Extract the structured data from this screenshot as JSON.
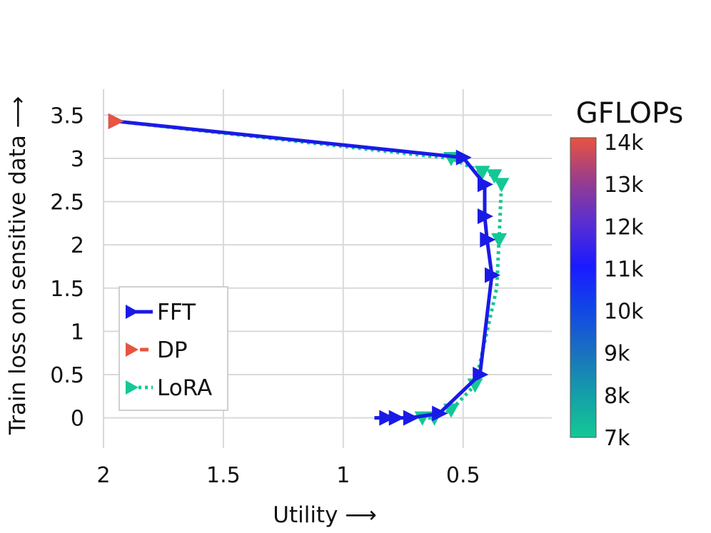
{
  "chart_data": {
    "type": "line",
    "xlabel": "Utility ⟶",
    "ylabel": "Train loss on sensitive data ⟶",
    "x_axis_reversed": true,
    "xlim": [
      2.0,
      0.13
    ],
    "ylim": [
      -0.35,
      3.8
    ],
    "xticks": [
      {
        "value": 2,
        "label": "2"
      },
      {
        "value": 1.5,
        "label": "1.5"
      },
      {
        "value": 1,
        "label": "1"
      },
      {
        "value": 0.5,
        "label": "0.5"
      }
    ],
    "yticks": [
      {
        "value": 3.5,
        "label": "3.5"
      },
      {
        "value": 3,
        "label": "3"
      },
      {
        "value": 2.5,
        "label": "2.5"
      },
      {
        "value": 2,
        "label": "2"
      },
      {
        "value": 1.5,
        "label": "1.5"
      },
      {
        "value": 1,
        "label": "1"
      },
      {
        "value": 0.5,
        "label": "0.5"
      },
      {
        "value": 0,
        "label": "0"
      }
    ],
    "grid": true,
    "legend_position": "lower-left",
    "series": [
      {
        "name": "FFT",
        "color": "#1a1ae6",
        "line_style": "solid",
        "marker": "triangle-right",
        "points": [
          [
            1.95,
            3.43
          ],
          [
            0.5,
            3.01
          ],
          [
            0.41,
            2.7
          ],
          [
            0.41,
            2.33
          ],
          [
            0.4,
            2.06
          ],
          [
            0.38,
            1.65
          ],
          [
            0.43,
            0.5
          ],
          [
            0.6,
            0.05
          ],
          [
            0.72,
            0.0
          ],
          [
            0.78,
            0.0
          ],
          [
            0.82,
            0.0
          ],
          [
            0.87,
            0.0
          ]
        ],
        "marker_indices": [
          0,
          1,
          2,
          3,
          4,
          5,
          6,
          7,
          8,
          9,
          10
        ]
      },
      {
        "name": "DP",
        "color": "#e8543f",
        "line_style": "dashed",
        "marker": "triangle-right",
        "points": [
          [
            1.95,
            3.43
          ]
        ],
        "marker_indices": [
          0
        ]
      },
      {
        "name": "LoRA",
        "color": "#14c895",
        "line_style": "dotted",
        "marker": "triangle-down",
        "points": [
          [
            1.95,
            3.43
          ],
          [
            0.55,
            3.0
          ],
          [
            0.42,
            2.84
          ],
          [
            0.37,
            2.8
          ],
          [
            0.34,
            2.7
          ],
          [
            0.35,
            2.06
          ],
          [
            0.36,
            1.5
          ],
          [
            0.45,
            0.38
          ],
          [
            0.55,
            0.09
          ],
          [
            0.62,
            0.0
          ],
          [
            0.67,
            0.0
          ]
        ],
        "marker_indices": [
          1,
          2,
          3,
          4,
          5,
          7,
          8,
          9,
          10
        ]
      }
    ],
    "colorbar": {
      "title": "GFLOPs",
      "min": 7000,
      "max": 14000,
      "tick_labels": [
        "14k",
        "13k",
        "12k",
        "11k",
        "10k",
        "9k",
        "8k",
        "7k"
      ],
      "gradient_colors": [
        "#e8543f",
        "#9a3d8c",
        "#5a2fd0",
        "#1a1aff",
        "#1146e6",
        "#1a6fc0",
        "#14a0a8",
        "#14c895"
      ]
    }
  }
}
